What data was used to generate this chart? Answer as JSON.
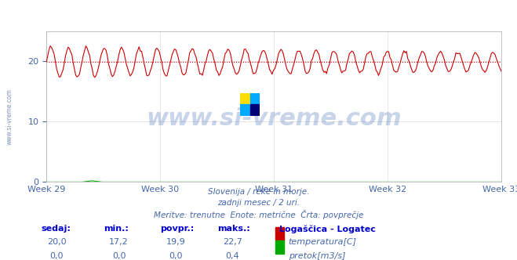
{
  "title": "Logaščica - Logatec",
  "title_color": "#0000cc",
  "bg_color": "#ffffff",
  "plot_bg_color": "#ffffff",
  "grid_color": "#dddddd",
  "axis_color": "#aaaaaa",
  "xlabel_color": "#4466aa",
  "week_labels": [
    "Week 29",
    "Week 30",
    "Week 31",
    "Week 32",
    "Week 33"
  ],
  "week_positions": [
    0,
    84,
    168,
    252,
    336
  ],
  "n_points": 360,
  "temp_min": 17.2,
  "temp_max": 22.7,
  "temp_avg": 19.9,
  "temp_current": 20.0,
  "temp_color": "#cc0000",
  "temp_avg_line_color": "#cc0000",
  "flow_color": "#00aa00",
  "flow_max": 0.4,
  "ylim": [
    0,
    25
  ],
  "yticks": [
    0,
    10,
    20
  ],
  "subtitle_lines": [
    "Slovenija / reke in morje.",
    "zadnji mesec / 2 uri.",
    "Meritve: trenutne  Enote: metrične  Črta: povprečje"
  ],
  "subtitle_color": "#4466aa",
  "table_header_color": "#0000cc",
  "table_value_color": "#4466aa",
  "watermark_text": "www.si-vreme.com",
  "watermark_color": "#2255aa",
  "watermark_alpha": 0.25,
  "left_label": "www.si-vreme.com",
  "left_label_color": "#4466aa",
  "logo_colors": [
    "#ffdd00",
    "#00aaff",
    "#00aaff",
    "#000077"
  ]
}
